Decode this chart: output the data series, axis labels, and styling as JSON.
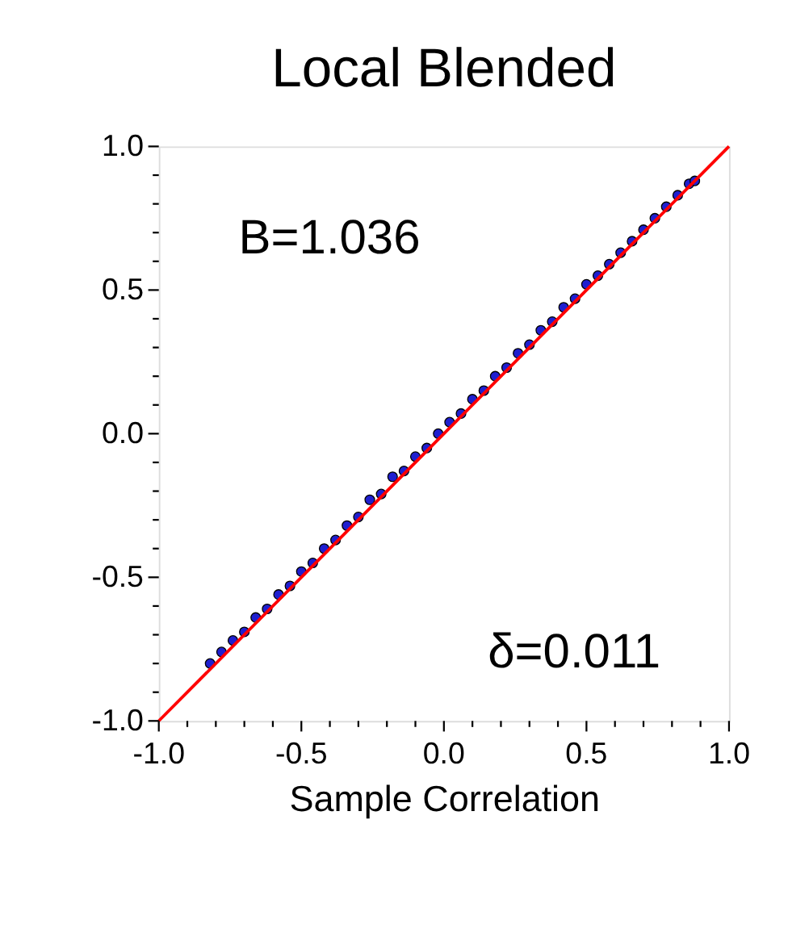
{
  "chart_data": {
    "type": "scatter",
    "title": "Local Blended",
    "xlabel": "Sample Correlation",
    "annotations": [
      "B=1.036",
      "δ=0.011"
    ],
    "xlim": [
      -1,
      1
    ],
    "ylim": [
      -1,
      1
    ],
    "xticks": [
      {
        "value": -1,
        "label": "-1.0"
      },
      {
        "value": -0.9,
        "label": null
      },
      {
        "value": -0.8,
        "label": null
      },
      {
        "value": -0.7,
        "label": null
      },
      {
        "value": -0.6,
        "label": null
      },
      {
        "value": -0.5,
        "label": "-0.5"
      },
      {
        "value": -0.4,
        "label": null
      },
      {
        "value": -0.3,
        "label": null
      },
      {
        "value": -0.2,
        "label": null
      },
      {
        "value": -0.1,
        "label": null
      },
      {
        "value": 0,
        "label": "0.0"
      },
      {
        "value": 0.1,
        "label": null
      },
      {
        "value": 0.2,
        "label": null
      },
      {
        "value": 0.3,
        "label": null
      },
      {
        "value": 0.4,
        "label": null
      },
      {
        "value": 0.5,
        "label": "0.5"
      },
      {
        "value": 0.6,
        "label": null
      },
      {
        "value": 0.7,
        "label": null
      },
      {
        "value": 0.8,
        "label": null
      },
      {
        "value": 0.9,
        "label": null
      },
      {
        "value": 1,
        "label": "1.0"
      }
    ],
    "yticks": [
      {
        "value": -1,
        "label": "-1.0"
      },
      {
        "value": -0.9,
        "label": null
      },
      {
        "value": -0.8,
        "label": null
      },
      {
        "value": -0.7,
        "label": null
      },
      {
        "value": -0.6,
        "label": null
      },
      {
        "value": -0.5,
        "label": "-0.5"
      },
      {
        "value": -0.4,
        "label": null
      },
      {
        "value": -0.3,
        "label": null
      },
      {
        "value": -0.2,
        "label": null
      },
      {
        "value": -0.1,
        "label": null
      },
      {
        "value": 0,
        "label": "0.0"
      },
      {
        "value": 0.1,
        "label": null
      },
      {
        "value": 0.2,
        "label": null
      },
      {
        "value": 0.3,
        "label": null
      },
      {
        "value": 0.4,
        "label": null
      },
      {
        "value": 0.5,
        "label": "0.5"
      },
      {
        "value": 0.6,
        "label": null
      },
      {
        "value": 0.7,
        "label": null
      },
      {
        "value": 0.8,
        "label": null
      },
      {
        "value": 0.9,
        "label": null
      },
      {
        "value": 1,
        "label": "1.0"
      }
    ],
    "grid": false,
    "series": [
      {
        "type": "scatter",
        "marker": "circle",
        "color": "#1f1fd0",
        "x": [
          -0.82,
          -0.78,
          -0.74,
          -0.7,
          -0.66,
          -0.62,
          -0.58,
          -0.54,
          -0.5,
          -0.46,
          -0.42,
          -0.38,
          -0.34,
          -0.3,
          -0.26,
          -0.22,
          -0.18,
          -0.14,
          -0.1,
          -0.06,
          -0.02,
          0.02,
          0.06,
          0.1,
          0.14,
          0.18,
          0.22,
          0.26,
          0.3,
          0.34,
          0.38,
          0.42,
          0.46,
          0.5,
          0.54,
          0.58,
          0.62,
          0.66,
          0.7,
          0.74,
          0.78,
          0.82,
          0.86,
          0.88
        ],
        "values": [
          -0.8,
          -0.76,
          -0.72,
          -0.69,
          -0.64,
          -0.61,
          -0.56,
          -0.53,
          -0.48,
          -0.45,
          -0.4,
          -0.37,
          -0.32,
          -0.29,
          -0.23,
          -0.21,
          -0.15,
          -0.13,
          -0.08,
          -0.05,
          0.0,
          0.04,
          0.07,
          0.12,
          0.15,
          0.2,
          0.23,
          0.28,
          0.31,
          0.36,
          0.39,
          0.44,
          0.47,
          0.52,
          0.55,
          0.59,
          0.63,
          0.67,
          0.71,
          0.75,
          0.79,
          0.83,
          0.87,
          0.88
        ]
      },
      {
        "type": "line",
        "color": "#ff0000",
        "x": [
          -1,
          1
        ],
        "values": [
          -1,
          1
        ]
      }
    ]
  }
}
